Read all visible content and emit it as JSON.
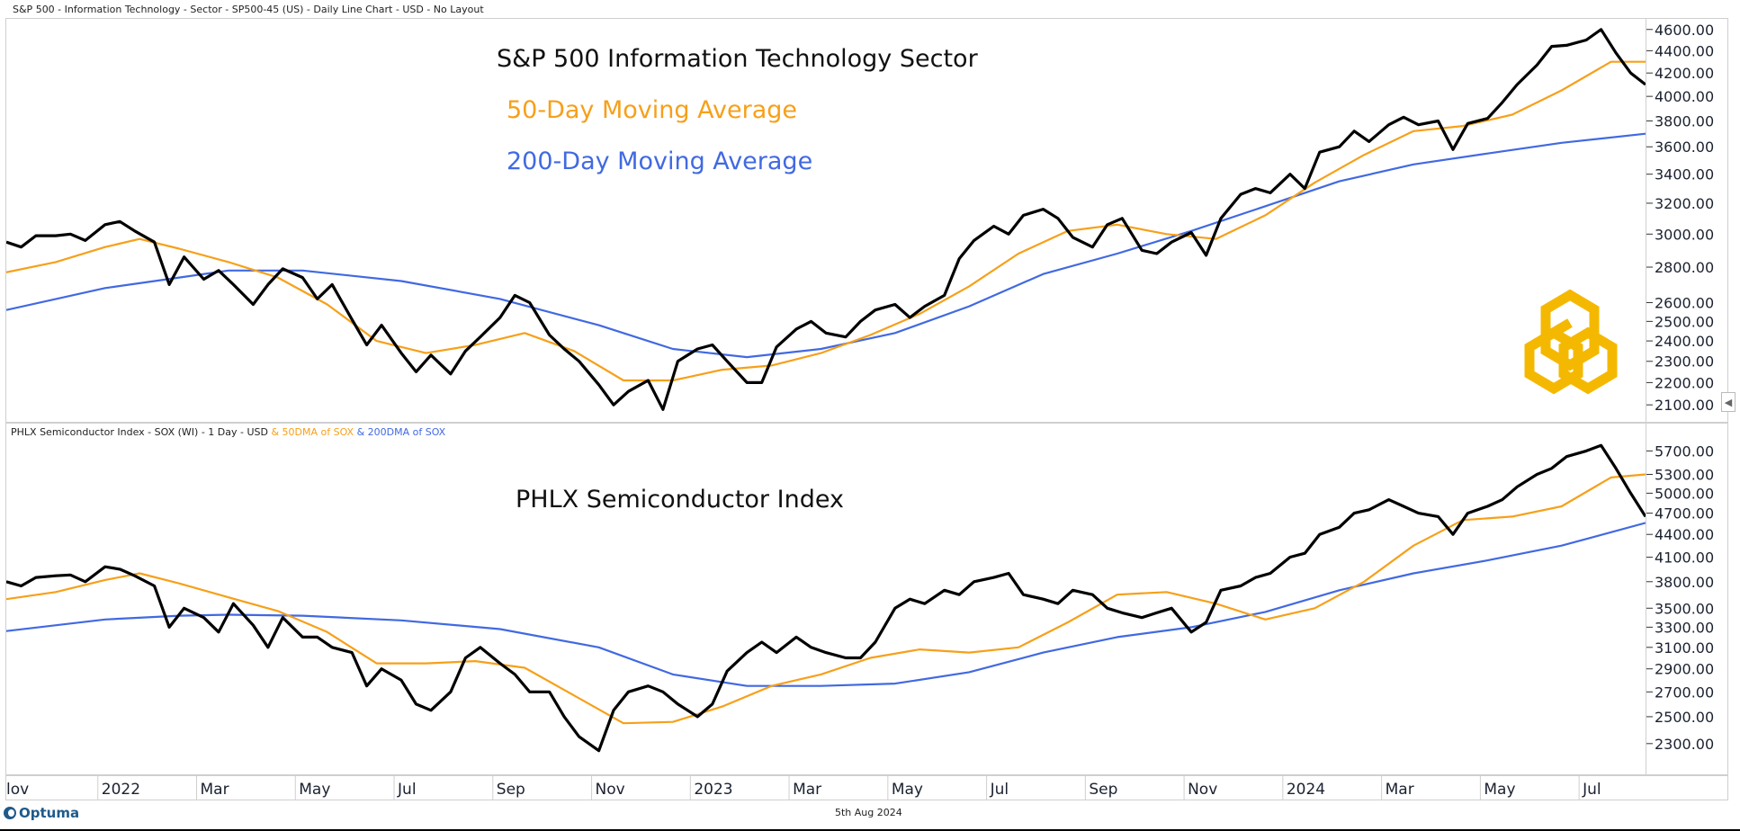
{
  "header": {
    "top_title": "S&P 500 - Information Technology - Sector - SP500-45 (US) - Daily Line Chart - USD - No Layout",
    "bottom_title_main": "PHLX Semiconductor Index - SOX (WI) - 1 Day - USD",
    "bottom_title_50": " & 50DMA of SOX",
    "bottom_title_200": " & 200DMA of SOX"
  },
  "annotations": {
    "top_title": "S&P 500 Information Technology Sector",
    "ma50": "50-Day Moving Average",
    "ma200": "200-Day Moving Average",
    "bottom_title": "PHLX Semiconductor Index"
  },
  "footer": {
    "date": "5th Aug 2024",
    "brand": "Optuma"
  },
  "colors": {
    "price": "#000000",
    "ma50": "#f6a01a",
    "ma200": "#4169e1",
    "logo": "#f5b800"
  },
  "chart_data": [
    {
      "type": "line",
      "title": "S&P 500 Information Technology Sector",
      "scale": "log",
      "ylim": [
        2050,
        4650
      ],
      "xlim_months": [
        0,
        33.2
      ],
      "x_months_note": "months since 1 Nov 2021",
      "yticks": [
        4600,
        4400,
        4200,
        4000,
        3800,
        3600,
        3400,
        3200,
        3000,
        2800,
        2600,
        2500,
        2400,
        2300,
        2200,
        2100
      ],
      "ytick_labels": [
        "4600.00",
        "4400.00",
        "4200.00",
        "4000.00",
        "3800.00",
        "3600.00",
        "3400.00",
        "3200.00",
        "3000.00",
        "2800.00",
        "2600.00",
        "2500.00",
        "2400.00",
        "2300.00",
        "2200.00",
        "2100.00"
      ],
      "series": [
        {
          "name": "Price",
          "color_key": "price",
          "x": [
            0,
            0.3,
            0.6,
            1.0,
            1.3,
            1.6,
            2.0,
            2.3,
            2.6,
            3.0,
            3.3,
            3.6,
            4.0,
            4.3,
            4.6,
            5.0,
            5.3,
            5.6,
            6.0,
            6.3,
            6.6,
            7.0,
            7.3,
            7.6,
            8.0,
            8.3,
            8.6,
            9.0,
            9.3,
            9.6,
            10.0,
            10.3,
            10.6,
            11.0,
            11.3,
            11.6,
            12.0,
            12.3,
            12.6,
            13.0,
            13.3,
            13.6,
            14.0,
            14.3,
            14.6,
            15.0,
            15.3,
            15.6,
            16.0,
            16.3,
            16.6,
            17.0,
            17.3,
            17.6,
            18.0,
            18.3,
            18.6,
            19.0,
            19.3,
            19.6,
            20.0,
            20.3,
            20.6,
            21.0,
            21.3,
            21.6,
            22.0,
            22.3,
            22.6,
            23.0,
            23.3,
            23.6,
            24.0,
            24.3,
            24.6,
            25.0,
            25.3,
            25.6,
            26.0,
            26.3,
            26.6,
            27.0,
            27.3,
            27.6,
            28.0,
            28.3,
            28.6,
            29.0,
            29.3,
            29.6,
            30.0,
            30.3,
            30.6,
            31.0,
            31.3,
            31.6,
            32.0,
            32.3,
            32.6,
            32.9,
            33.2
          ],
          "values": [
            2950,
            2920,
            2990,
            2990,
            3000,
            2960,
            3060,
            3080,
            3020,
            2950,
            2700,
            2860,
            2730,
            2780,
            2700,
            2590,
            2700,
            2790,
            2740,
            2620,
            2700,
            2510,
            2380,
            2480,
            2340,
            2250,
            2330,
            2240,
            2350,
            2420,
            2520,
            2640,
            2600,
            2430,
            2360,
            2300,
            2190,
            2100,
            2160,
            2210,
            2080,
            2300,
            2360,
            2380,
            2300,
            2200,
            2200,
            2370,
            2460,
            2500,
            2440,
            2420,
            2500,
            2560,
            2590,
            2520,
            2580,
            2640,
            2850,
            2960,
            3050,
            3000,
            3120,
            3160,
            3100,
            2980,
            2920,
            3060,
            3100,
            2900,
            2880,
            2950,
            3010,
            2870,
            3100,
            3260,
            3300,
            3270,
            3400,
            3300,
            3560,
            3600,
            3720,
            3640,
            3770,
            3830,
            3770,
            3800,
            3580,
            3780,
            3820,
            3950,
            4100,
            4270,
            4440,
            4450,
            4500,
            4600,
            4380,
            4200,
            4100
          ]
        },
        {
          "name": "50-Day Moving Average",
          "color_key": "ma50",
          "x": [
            0,
            1,
            2,
            2.7,
            3.5,
            4.5,
            5.5,
            6.5,
            7.5,
            8.5,
            9.5,
            10.5,
            11.5,
            12.5,
            13.5,
            14.5,
            15.5,
            16.5,
            17.5,
            18.5,
            19.5,
            20.5,
            21.5,
            22.5,
            23.5,
            24.5,
            25.5,
            26.5,
            27.5,
            28.5,
            29.5,
            30.5,
            31.5,
            32.5,
            33.2
          ],
          "values": [
            2770,
            2830,
            2920,
            2970,
            2910,
            2830,
            2740,
            2590,
            2400,
            2340,
            2380,
            2440,
            2350,
            2210,
            2210,
            2260,
            2280,
            2340,
            2430,
            2540,
            2690,
            2880,
            3020,
            3060,
            3000,
            2970,
            3120,
            3340,
            3540,
            3720,
            3760,
            3850,
            4050,
            4300,
            4300
          ]
        },
        {
          "name": "200-Day Moving Average",
          "color_key": "ma200",
          "x": [
            0,
            2,
            3.5,
            4.5,
            6,
            8,
            10,
            12,
            13.5,
            15,
            16.5,
            18,
            19.5,
            21,
            22.5,
            24,
            25.5,
            27,
            28.5,
            30,
            31.5,
            33.2
          ],
          "values": [
            2560,
            2680,
            2740,
            2780,
            2780,
            2720,
            2620,
            2480,
            2360,
            2320,
            2360,
            2440,
            2580,
            2760,
            2880,
            3020,
            3180,
            3350,
            3470,
            3550,
            3630,
            3700
          ]
        }
      ]
    },
    {
      "type": "line",
      "title": "PHLX Semiconductor Index",
      "scale": "log",
      "ylim": [
        2150,
        6000
      ],
      "xlim_months": [
        0,
        33.2
      ],
      "yticks": [
        5700,
        5300,
        5000,
        4700,
        4400,
        4100,
        3800,
        3500,
        3300,
        3100,
        2900,
        2700,
        2500,
        2300
      ],
      "ytick_labels": [
        "5700.00",
        "5300.00",
        "5000.00",
        "4700.00",
        "4400.00",
        "4100.00",
        "3800.00",
        "3500.00",
        "3300.00",
        "3100.00",
        "2900.00",
        "2700.00",
        "2500.00",
        "2300.00"
      ],
      "series": [
        {
          "name": "SOX",
          "color_key": "price",
          "x": [
            0,
            0.3,
            0.6,
            1.0,
            1.3,
            1.6,
            2.0,
            2.3,
            2.6,
            3.0,
            3.3,
            3.6,
            4.0,
            4.3,
            4.6,
            5.0,
            5.3,
            5.6,
            6.0,
            6.3,
            6.6,
            7.0,
            7.3,
            7.6,
            8.0,
            8.3,
            8.6,
            9.0,
            9.3,
            9.6,
            10.0,
            10.3,
            10.6,
            11.0,
            11.3,
            11.6,
            12.0,
            12.3,
            12.6,
            13.0,
            13.3,
            13.6,
            14.0,
            14.3,
            14.6,
            15.0,
            15.3,
            15.6,
            16.0,
            16.3,
            16.6,
            17.0,
            17.3,
            17.6,
            18.0,
            18.3,
            18.6,
            19.0,
            19.3,
            19.6,
            20.0,
            20.3,
            20.6,
            21.0,
            21.3,
            21.6,
            22.0,
            22.3,
            22.6,
            23.0,
            23.3,
            23.6,
            24.0,
            24.3,
            24.6,
            25.0,
            25.3,
            25.6,
            26.0,
            26.3,
            26.6,
            27.0,
            27.3,
            27.6,
            28.0,
            28.3,
            28.6,
            29.0,
            29.3,
            29.6,
            30.0,
            30.3,
            30.6,
            31.0,
            31.3,
            31.6,
            32.0,
            32.3,
            32.6,
            32.9,
            33.2
          ],
          "values": [
            3800,
            3750,
            3850,
            3870,
            3880,
            3800,
            3980,
            3950,
            3870,
            3750,
            3300,
            3500,
            3400,
            3250,
            3550,
            3320,
            3100,
            3400,
            3200,
            3200,
            3100,
            3050,
            2750,
            2900,
            2800,
            2600,
            2550,
            2700,
            3000,
            3100,
            2950,
            2850,
            2700,
            2700,
            2500,
            2350,
            2250,
            2550,
            2700,
            2750,
            2700,
            2600,
            2500,
            2600,
            2880,
            3050,
            3150,
            3050,
            3200,
            3100,
            3050,
            3000,
            3000,
            3150,
            3500,
            3600,
            3550,
            3700,
            3650,
            3800,
            3850,
            3900,
            3650,
            3600,
            3550,
            3700,
            3650,
            3500,
            3450,
            3400,
            3450,
            3500,
            3250,
            3350,
            3700,
            3750,
            3850,
            3900,
            4100,
            4150,
            4400,
            4500,
            4700,
            4750,
            4900,
            4800,
            4700,
            4650,
            4400,
            4700,
            4800,
            4900,
            5100,
            5300,
            5400,
            5600,
            5700,
            5800,
            5400,
            5000,
            4650
          ]
        },
        {
          "name": "50DMA of SOX",
          "color_key": "ma50",
          "x": [
            0,
            1,
            2,
            2.7,
            3.5,
            4.5,
            5.5,
            6.5,
            7.5,
            8.5,
            9.5,
            10.5,
            11.5,
            12.5,
            13.5,
            14.5,
            15.5,
            16.5,
            17.5,
            18.5,
            19.5,
            20.5,
            21.5,
            22.5,
            23.5,
            24.5,
            25.5,
            26.5,
            27.5,
            28.5,
            29.5,
            30.5,
            31.5,
            32.5,
            33.2
          ],
          "values": [
            3600,
            3680,
            3820,
            3900,
            3780,
            3620,
            3470,
            3250,
            2950,
            2950,
            2970,
            2910,
            2670,
            2450,
            2460,
            2580,
            2750,
            2850,
            3000,
            3080,
            3050,
            3100,
            3350,
            3650,
            3680,
            3550,
            3380,
            3500,
            3800,
            4250,
            4600,
            4650,
            4800,
            5250,
            5300
          ]
        },
        {
          "name": "200DMA of SOX",
          "color_key": "ma200",
          "x": [
            0,
            2,
            3.5,
            4.5,
            6,
            8,
            10,
            12,
            13.5,
            15,
            16.5,
            18,
            19.5,
            21,
            22.5,
            24,
            25.5,
            27,
            28.5,
            30,
            31.5,
            33.2
          ],
          "values": [
            3260,
            3380,
            3420,
            3430,
            3420,
            3370,
            3280,
            3100,
            2850,
            2750,
            2750,
            2770,
            2870,
            3050,
            3200,
            3300,
            3460,
            3700,
            3900,
            4060,
            4250,
            4560
          ]
        }
      ]
    }
  ],
  "x_axis": {
    "labels": [
      "lov",
      "2022",
      "Mar",
      "May",
      "Jul",
      "Sep",
      "Nov",
      "2023",
      "Mar",
      "May",
      "Jul",
      "Sep",
      "Nov",
      "2024",
      "Mar",
      "May",
      "Jul"
    ],
    "months": [
      0.1,
      2,
      4,
      6,
      8,
      10,
      12,
      14,
      16,
      18,
      20,
      22,
      24,
      26,
      28,
      30,
      32
    ]
  }
}
